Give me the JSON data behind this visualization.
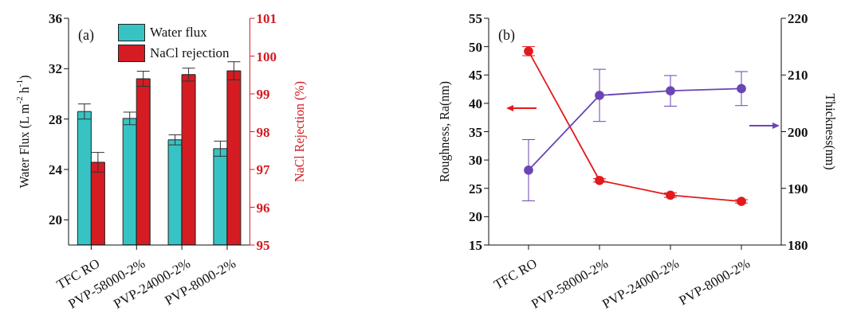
{
  "chart_data": [
    {
      "type": "bar",
      "categories": [
        "TFC RO",
        "PVP-58000-2%",
        "PVP-24000-2%",
        "PVP-8000-2%"
      ],
      "series": [
        {
          "name": "Water flux",
          "color": "#37c3c3",
          "values": [
            28.6,
            28.05,
            26.35,
            25.65
          ],
          "errors": [
            0.6,
            0.5,
            0.4,
            0.6
          ]
        },
        {
          "name": "NaCl rejection",
          "color": "#d41c22",
          "axis": "y2",
          "values": [
            97.19,
            99.4,
            99.51,
            99.61
          ],
          "errors": [
            0.26,
            0.2,
            0.17,
            0.24
          ]
        }
      ],
      "ylabel": "Water Flux (L m$^{-2}$ h$^{-1}$)",
      "y2label": "NaCl Rejection (%)",
      "ylim": [
        18,
        36
      ],
      "yticks": [
        20,
        24,
        28,
        32,
        36
      ],
      "y2lim": [
        95,
        101
      ],
      "y2ticks": [
        95,
        96,
        97,
        98,
        99,
        100,
        101
      ],
      "legend": "top right",
      "annotations": [
        "(a)"
      ]
    },
    {
      "type": "line",
      "categories": [
        "TFC RO",
        "PVP-58000-2%",
        "PVP-24000-2%",
        "PVP-8000-2%"
      ],
      "series": [
        {
          "color": "#e31a1c",
          "values": [
            49.2,
            26.4,
            23.8,
            22.7
          ],
          "errors": [
            0.8,
            0.3,
            0.4,
            0.3
          ]
        },
        {
          "color": "#6a45b5",
          "axis": "y2",
          "values": [
            193.2,
            206.4,
            207.2,
            207.6
          ],
          "errors": [
            5.4,
            4.6,
            2.7,
            3.0
          ]
        }
      ],
      "ylabel": "Roughness, Ra(nm)",
      "y2label": "Thickness(nm)",
      "ylim": [
        15,
        55
      ],
      "yticks": [
        15,
        20,
        25,
        30,
        35,
        40,
        45,
        50,
        55
      ],
      "y2lim": [
        180,
        220
      ],
      "y2ticks": [
        180,
        190,
        200,
        210,
        220
      ],
      "marker": "circle",
      "annotations": [
        "(b)"
      ]
    }
  ]
}
